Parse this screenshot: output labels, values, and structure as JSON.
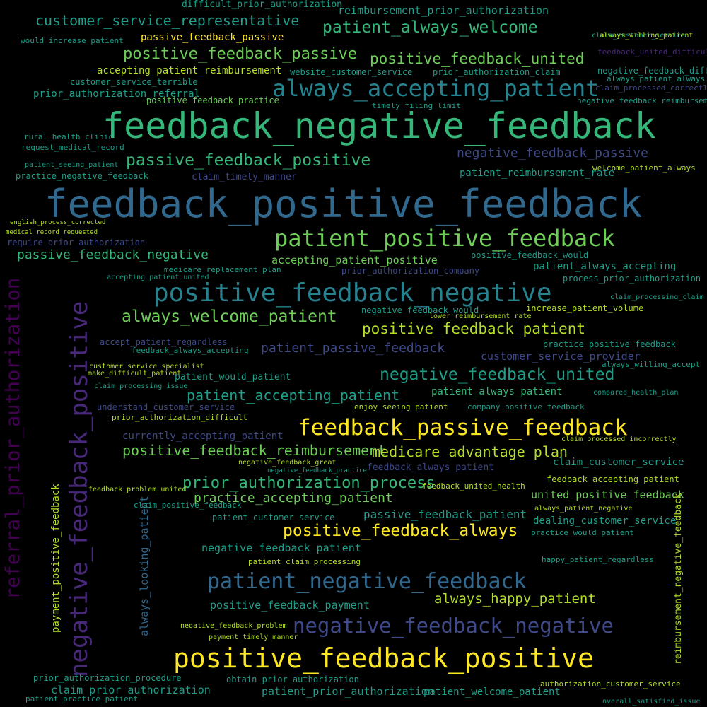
{
  "palette": {
    "background": "#000000",
    "yellow": "#fde725",
    "lime": "#b5de2b",
    "green": "#6ece58",
    "teal_green": "#35b779",
    "teal": "#1f9e89",
    "cyan_blue": "#26828e",
    "blue": "#31688e",
    "indigo": "#3e4989",
    "purple": "#482878",
    "deep_purple": "#440154"
  },
  "words": [
    {
      "text": "feedback_positive_feedback",
      "color": "blue"
    },
    {
      "text": "feedback_negative_feedback",
      "color": "teal_green"
    },
    {
      "text": "positive_feedback_positive",
      "color": "yellow"
    },
    {
      "text": "negative_feedback_positive",
      "color": "purple"
    },
    {
      "text": "feedback_passive_feedback",
      "color": "yellow"
    },
    {
      "text": "positive_feedback_negative",
      "color": "cyan_blue"
    },
    {
      "text": "patient_positive_feedback",
      "color": "green"
    },
    {
      "text": "always_accepting_patient",
      "color": "cyan_blue"
    },
    {
      "text": "negative_feedback_negative",
      "color": "indigo"
    },
    {
      "text": "patient_negative_feedback",
      "color": "blue"
    },
    {
      "text": "passive_feedback_positive",
      "color": "teal_green"
    },
    {
      "text": "referral_prior_authorization",
      "color": "deep_purple"
    },
    {
      "text": "customer_service_representative",
      "color": "teal"
    },
    {
      "text": "positive_feedback_passive",
      "color": "green"
    },
    {
      "text": "patient_always_welcome",
      "color": "teal_green"
    },
    {
      "text": "positive_feedback_united",
      "color": "green"
    },
    {
      "text": "always_welcome_patient",
      "color": "green"
    },
    {
      "text": "positive_feedback_patient",
      "color": "lime"
    },
    {
      "text": "negative_feedback_united",
      "color": "teal"
    },
    {
      "text": "positive_feedback_always",
      "color": "yellow"
    },
    {
      "text": "prior_authorization_process",
      "color": "teal_green"
    },
    {
      "text": "positive_feedback_reimbursement",
      "color": "green"
    },
    {
      "text": "patient_accepting_patient",
      "color": "teal"
    },
    {
      "text": "medicare_advantage_plan",
      "color": "lime"
    },
    {
      "text": "passive_feedback_negative",
      "color": "teal_green"
    },
    {
      "text": "patient_passive_feedback",
      "color": "indigo"
    },
    {
      "text": "negative_feedback_passive",
      "color": "indigo"
    },
    {
      "text": "always_happy_patient",
      "color": "lime"
    },
    {
      "text": "practice_accepting_patient",
      "color": "green"
    },
    {
      "text": "passive_feedback_passive",
      "color": "yellow"
    },
    {
      "text": "accepting_patient_reimbursement",
      "color": "lime"
    },
    {
      "text": "patient_reimbursement_rate",
      "color": "teal"
    },
    {
      "text": "accepting_patient_positive",
      "color": "green"
    },
    {
      "text": "positive_feedback_payment",
      "color": "teal"
    },
    {
      "text": "passive_feedback_patient",
      "color": "teal"
    },
    {
      "text": "negative_feedback_patient",
      "color": "teal"
    },
    {
      "text": "always_looking_patient",
      "color": "blue"
    },
    {
      "text": "claim_prior_authorization",
      "color": "teal"
    },
    {
      "text": "patient_prior_authorization",
      "color": "teal"
    },
    {
      "text": "prior_authorization_referral",
      "color": "teal"
    },
    {
      "text": "website_customer_service",
      "color": "teal"
    },
    {
      "text": "customer_service_provider",
      "color": "indigo"
    },
    {
      "text": "prior_authorization_claim",
      "color": "teal"
    },
    {
      "text": "reimbursement_prior_authorization",
      "color": "teal"
    },
    {
      "text": "claim_customer_service",
      "color": "teal"
    },
    {
      "text": "payment_positive_feedback",
      "color": "lime"
    },
    {
      "text": "united_positive_feedback",
      "color": "green"
    },
    {
      "text": "feedback_accepting_patient",
      "color": "lime"
    },
    {
      "text": "dealing_customer_service",
      "color": "teal"
    },
    {
      "text": "patient_welcome_patient",
      "color": "teal"
    },
    {
      "text": "patient_always_patient",
      "color": "teal_green"
    },
    {
      "text": "patient_always_accepting",
      "color": "teal"
    },
    {
      "text": "difficult_prior_authorization",
      "color": "teal"
    },
    {
      "text": "increase_patient_volume",
      "color": "lime"
    },
    {
      "text": "practice_positive_feedback",
      "color": "teal"
    },
    {
      "text": "feedback_always_patient",
      "color": "indigo"
    },
    {
      "text": "negative_feedback_difficult",
      "color": "teal"
    },
    {
      "text": "positive_feedback_would",
      "color": "teal"
    },
    {
      "text": "patient_would_patient",
      "color": "teal"
    },
    {
      "text": "customer_service_terrible",
      "color": "teal"
    },
    {
      "text": "currently_accepting_patient",
      "color": "indigo"
    },
    {
      "text": "claim_timely_manner",
      "color": "indigo"
    },
    {
      "text": "positive_feedback_practice",
      "color": "green"
    },
    {
      "text": "obtain_prior_authorization",
      "color": "teal"
    },
    {
      "text": "process_prior_authorization",
      "color": "teal"
    },
    {
      "text": "accept_patient_regardless",
      "color": "indigo"
    },
    {
      "text": "practice_negative_feedback",
      "color": "teal"
    },
    {
      "text": "prior_authorization_procedure",
      "color": "teal"
    },
    {
      "text": "claim_processing_issue",
      "color": "teal"
    },
    {
      "text": "understand_customer_service",
      "color": "indigo"
    },
    {
      "text": "patient_customer_service",
      "color": "teal"
    },
    {
      "text": "negative_feedback_would",
      "color": "teal"
    },
    {
      "text": "feedback_always_accepting",
      "color": "teal"
    },
    {
      "text": "always_patient_always",
      "color": "teal"
    },
    {
      "text": "welcome_patient_always",
      "color": "lime"
    },
    {
      "text": "feedback_united_health",
      "color": "lime"
    },
    {
      "text": "prior_authorization_company",
      "color": "indigo"
    },
    {
      "text": "prior_authorization_difficult",
      "color": "lime"
    },
    {
      "text": "medicare_replacement_plan",
      "color": "teal"
    },
    {
      "text": "happy_patient_regardless",
      "color": "teal"
    },
    {
      "text": "patient_claim_processing",
      "color": "lime"
    },
    {
      "text": "authorization_customer_service",
      "color": "lime"
    },
    {
      "text": "would_increase_patient",
      "color": "teal"
    },
    {
      "text": "accepting_patient_united",
      "color": "teal"
    },
    {
      "text": "claim_processing_claim",
      "color": "teal"
    },
    {
      "text": "claim_customer_service",
      "color": "teal"
    },
    {
      "text": "enjoy_seeing_patient",
      "color": "lime"
    },
    {
      "text": "timely_filing_limit",
      "color": "teal"
    },
    {
      "text": "patient_seeing_patient",
      "color": "teal"
    },
    {
      "text": "practice_would_patient",
      "color": "teal"
    },
    {
      "text": "lower_reimbursement_rate",
      "color": "lime"
    },
    {
      "text": "compared_health_plan",
      "color": "teal"
    },
    {
      "text": "always_willing_patient",
      "color": "lime"
    },
    {
      "text": "customer_service_specialist",
      "color": "lime"
    },
    {
      "text": "make_difficult_patient",
      "color": "lime"
    },
    {
      "text": "feedback_problem_united",
      "color": "lime"
    },
    {
      "text": "claim_positive_feedback",
      "color": "teal"
    },
    {
      "text": "company_positive_feedback",
      "color": "teal"
    },
    {
      "text": "rural_health_clinic",
      "color": "teal"
    },
    {
      "text": "request_medical_record",
      "color": "teal"
    },
    {
      "text": "english_process_corrected",
      "color": "lime"
    },
    {
      "text": "medical_record_requested",
      "color": "lime"
    },
    {
      "text": "require_prior_authorization",
      "color": "indigo"
    },
    {
      "text": "reimbursement_negative_feedback",
      "color": "lime"
    },
    {
      "text": "feedback_united_difficult",
      "color": "purple"
    },
    {
      "text": "negative_feedback_reimbursement",
      "color": "teal"
    },
    {
      "text": "claim_processed_correctly",
      "color": "indigo"
    },
    {
      "text": "always_patient_negative",
      "color": "lime"
    },
    {
      "text": "claim_processed_incorrectly",
      "color": "lime"
    },
    {
      "text": "always_willing_accept",
      "color": "teal"
    },
    {
      "text": "negative_feedback_great",
      "color": "lime"
    },
    {
      "text": "negative_feedback_practice",
      "color": "teal"
    },
    {
      "text": "negative_feedback_problem",
      "color": "lime"
    },
    {
      "text": "payment_timely_manner",
      "color": "lime"
    },
    {
      "text": "patient_practice_patient",
      "color": "teal"
    },
    {
      "text": "overall_satisfied_issue",
      "color": "teal"
    }
  ]
}
